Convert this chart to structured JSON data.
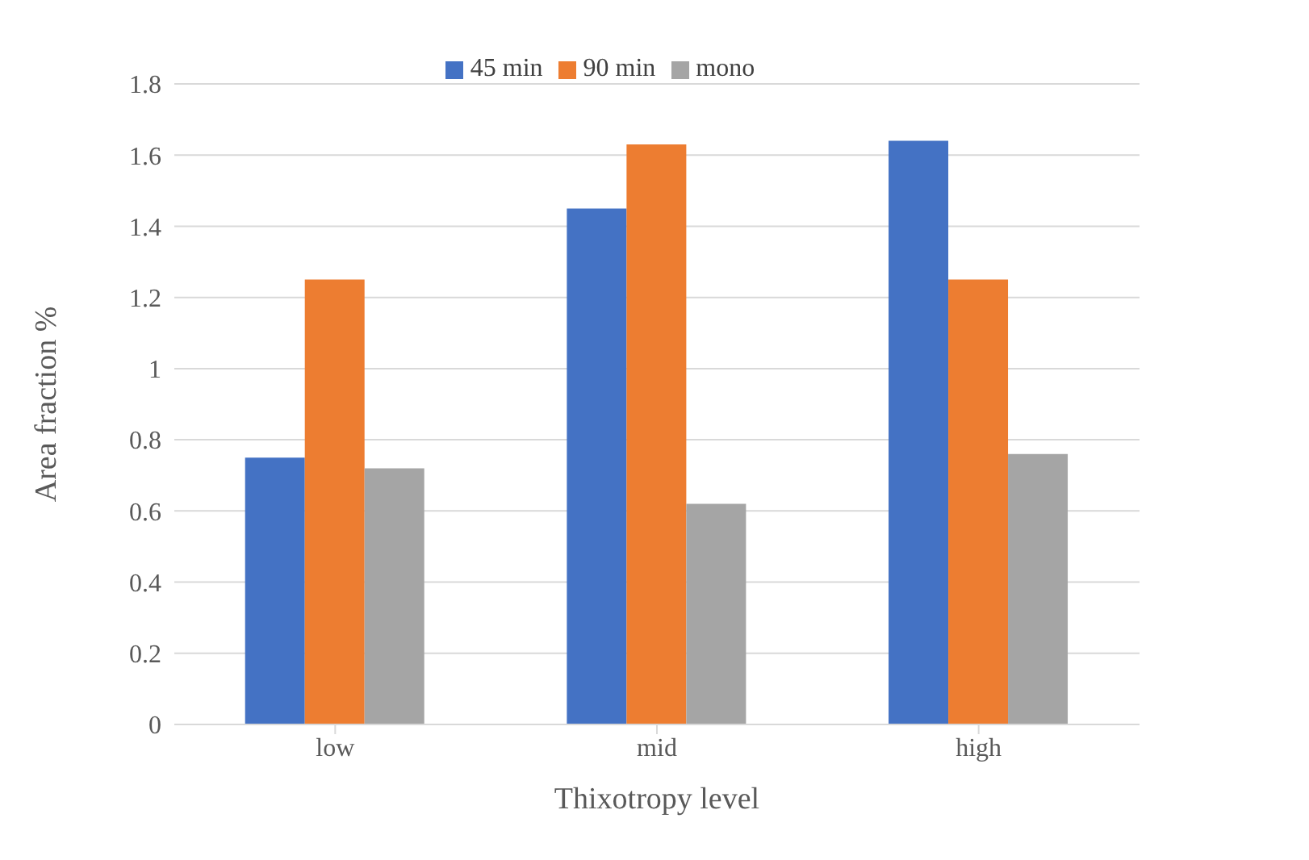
{
  "chart_data": {
    "type": "bar",
    "xlabel": "Thixotropy level",
    "ylabel": "Area fraction %",
    "categories": [
      "low",
      "mid",
      "high"
    ],
    "series": [
      {
        "name": "45 min",
        "color": "#4472c4",
        "values": [
          0.75,
          1.45,
          1.64
        ]
      },
      {
        "name": "90 min",
        "color": "#ed7d31",
        "values": [
          1.25,
          1.63,
          1.25
        ]
      },
      {
        "name": "mono",
        "color": "#a5a5a5",
        "values": [
          0.72,
          0.62,
          0.76
        ]
      }
    ],
    "ylim": [
      0,
      1.8
    ],
    "yticks": [
      0,
      0.2,
      0.4,
      0.6,
      0.8,
      1,
      1.2,
      1.4,
      1.6,
      1.8
    ],
    "grid": "y",
    "legend": "top"
  }
}
